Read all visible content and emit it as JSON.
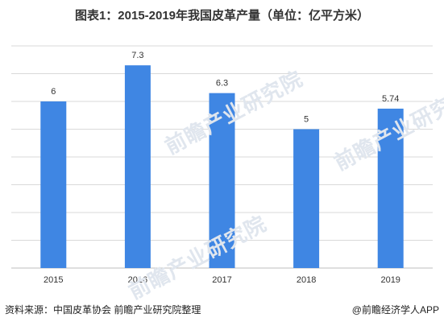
{
  "chart_data": {
    "type": "bar",
    "title": "图表1：2015-2019年我国皮革产量（单位：亿平方米）",
    "categories": [
      "2015",
      "2016",
      "2017",
      "2018",
      "2019"
    ],
    "values": [
      6,
      7.3,
      6.3,
      5,
      5.74
    ],
    "data_labels": [
      "6",
      "7.3",
      "6.3",
      "5",
      "5.74"
    ],
    "ylim": [
      0,
      8
    ],
    "grid": true,
    "colors": {
      "bar": "#3f86e3",
      "grid": "#d9d9d9",
      "axis": "#bfbfbf"
    }
  },
  "footer": {
    "source": "资料来源：中国皮革协会  前瞻产业研究院整理",
    "brand": "@前瞻经济学人APP"
  },
  "watermark": {
    "text": "前瞻产业研究院"
  }
}
